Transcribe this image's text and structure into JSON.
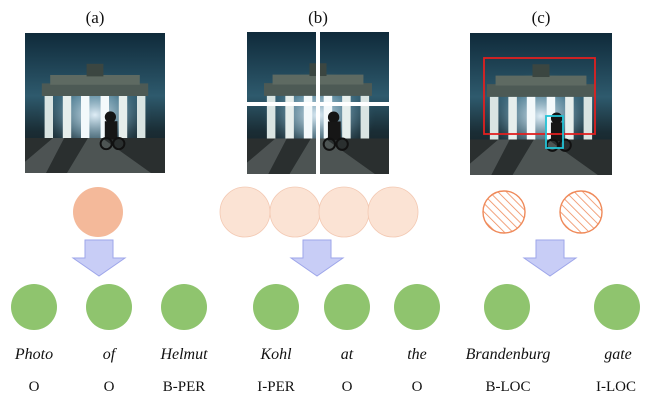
{
  "panels": [
    {
      "label": "(a)"
    },
    {
      "label": "(b)"
    },
    {
      "label": "(c)"
    }
  ],
  "tokens": [
    {
      "word": "Photo",
      "tag": "O"
    },
    {
      "word": "of",
      "tag": "O"
    },
    {
      "word": "Helmut",
      "tag": "B-PER"
    },
    {
      "word": "Kohl",
      "tag": "I-PER"
    },
    {
      "word": "at",
      "tag": "O"
    },
    {
      "word": "the",
      "tag": "O"
    },
    {
      "word": "Brandenburg",
      "tag": "B-LOC"
    },
    {
      "word": "gate",
      "tag": "I-LOC"
    }
  ],
  "colors": {
    "global_feature": "#f4b99a",
    "region_feature": "#fbe3d4",
    "object_feature_stroke": "#ef8a5a",
    "token_node": "#8fc46e",
    "arrow": "#c8cdf6",
    "arrow_stroke": "#9ea6ea",
    "grid_line": "#ffffff",
    "box_large": "#e02020",
    "box_small": "#22c3d6"
  }
}
